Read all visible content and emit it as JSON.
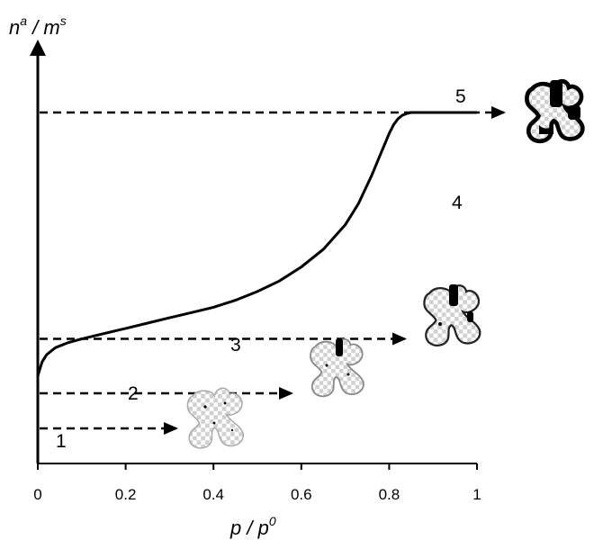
{
  "chart_data": {
    "type": "line",
    "xlabel": {
      "base": "p / p",
      "sup": "0"
    },
    "ylabel": {
      "base1": "n",
      "sup1": "a",
      "mid": " / m",
      "sup2": "s"
    },
    "xlim": [
      0,
      1
    ],
    "x_ticks": [
      "0",
      "0.2",
      "0.4",
      "0.6",
      "0.8",
      "1"
    ],
    "grid": false,
    "series": [
      {
        "x": [
          0,
          0.005,
          0.01,
          0.02,
          0.04,
          0.07,
          0.1,
          0.15,
          0.2,
          0.25,
          0.3,
          0.35,
          0.4,
          0.45,
          0.5,
          0.55,
          0.6,
          0.65,
          0.7,
          0.73,
          0.76,
          0.78,
          0.8,
          0.81,
          0.82,
          0.83,
          0.84,
          0.85,
          0.86,
          0.88,
          0.9,
          0.95,
          1.0
        ],
        "y": [
          0.25,
          0.27,
          0.29,
          0.31,
          0.33,
          0.345,
          0.355,
          0.37,
          0.385,
          0.4,
          0.415,
          0.43,
          0.445,
          0.465,
          0.49,
          0.52,
          0.56,
          0.61,
          0.68,
          0.74,
          0.82,
          0.88,
          0.94,
          0.965,
          0.982,
          0.992,
          0.997,
          1.0,
          1.0,
          1.0,
          1.0,
          1.0,
          1.0
        ]
      }
    ],
    "stages": [
      {
        "label": "1",
        "arrow_y": null
      },
      {
        "label": "2",
        "arrow_y": 0.1
      },
      {
        "label": "3",
        "arrow_y": 0.2
      },
      {
        "label": "4",
        "arrow_y": 0.355
      },
      {
        "label": "5",
        "arrow_y": 1.0
      }
    ]
  },
  "colors": {
    "line": "#000000",
    "arrow": "#000000",
    "particle_light": "#aaaaaa",
    "particle_dark": "#000000"
  },
  "icons": [
    "particle-stage-1-icon",
    "particle-stage-2-icon",
    "particle-stage-3-icon",
    "particle-stage-4-icon"
  ]
}
